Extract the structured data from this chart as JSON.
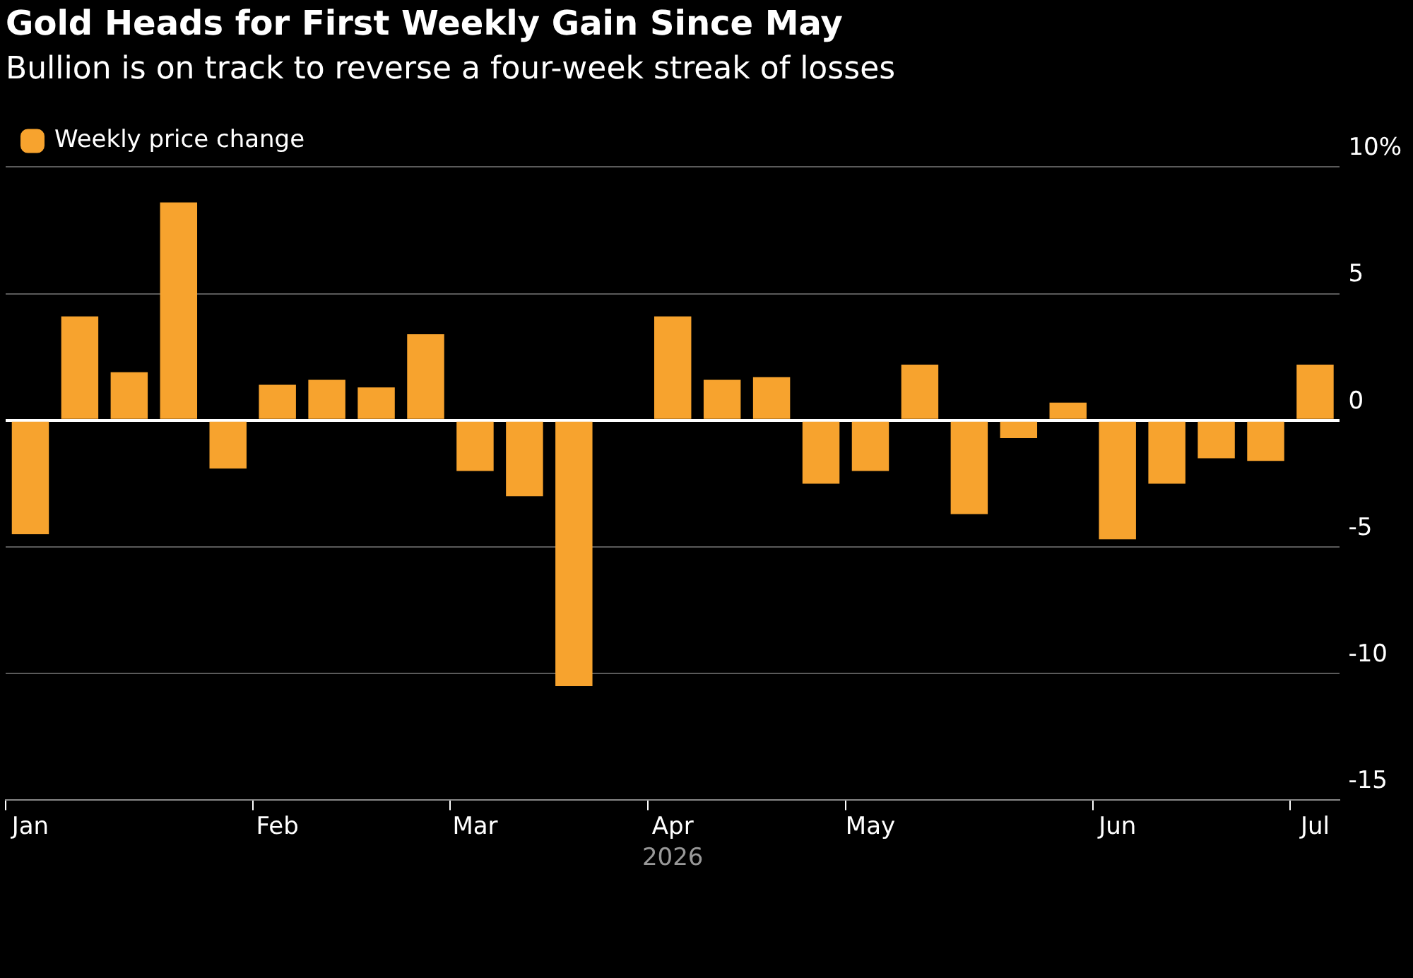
{
  "chart_data": {
    "type": "bar",
    "title": "Gold Heads for First Weekly Gain Since May",
    "subtitle": "Bullion is on track to reverse a four-week streak of losses",
    "xlabel": "2026",
    "categories": [
      "Jan",
      null,
      null,
      null,
      null,
      "Feb",
      null,
      null,
      null,
      "Mar",
      null,
      null,
      null,
      "Apr",
      null,
      null,
      null,
      "May",
      null,
      null,
      null,
      null,
      "Jun",
      null,
      null,
      null,
      "Jul"
    ],
    "series": [
      {
        "name": "Weekly price change",
        "color": "#f7a32e",
        "values": [
          -4.5,
          4.1,
          1.9,
          8.6,
          -1.9,
          1.4,
          1.6,
          1.3,
          3.4,
          -2.0,
          -3.0,
          -10.5,
          0,
          4.1,
          1.6,
          1.7,
          -2.5,
          -2.0,
          2.2,
          -3.7,
          -0.7,
          0.7,
          -4.7,
          -2.5,
          -1.5,
          -1.6,
          2.2
        ]
      }
    ],
    "ylim": [
      -15,
      10
    ],
    "yticks": [
      {
        "value": 10,
        "label": "10%"
      },
      5,
      0,
      -5,
      -10,
      -15
    ],
    "grid": "y",
    "legend": "top left"
  }
}
